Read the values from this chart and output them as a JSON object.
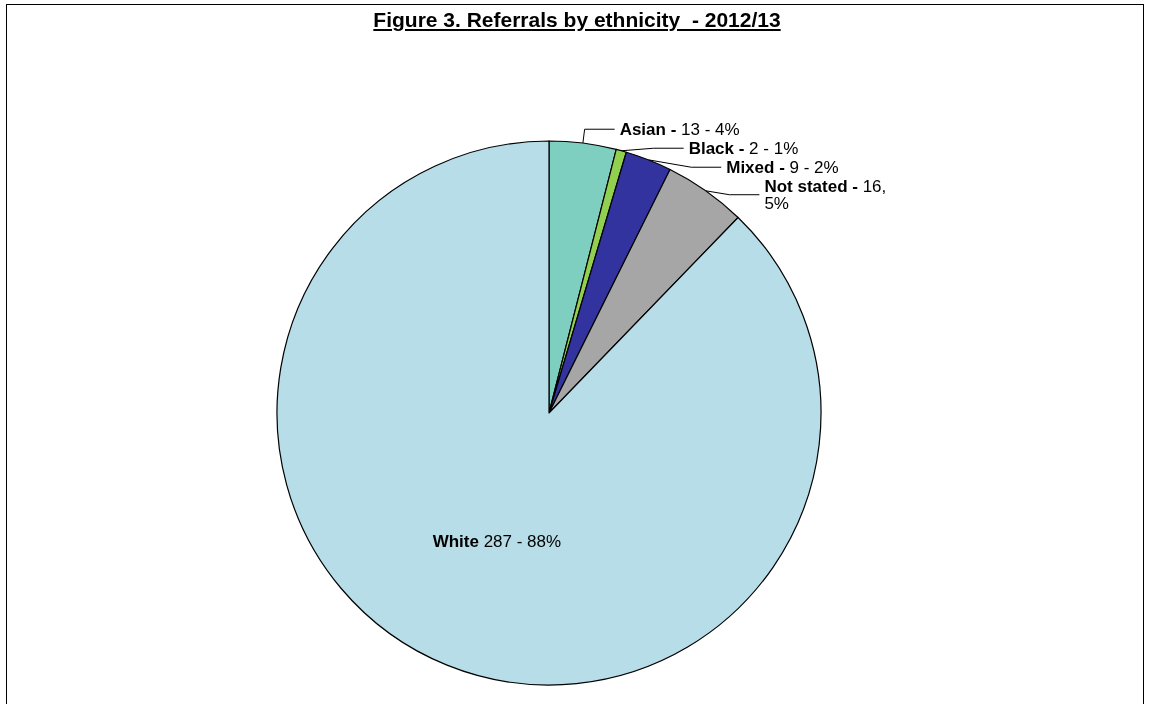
{
  "chart_data": {
    "type": "pie",
    "title": "Figure 3. Referrals by ethnicity  - 2012/13",
    "categories": [
      "Asian -",
      "Black -",
      "Mixed -",
      "Not stated -",
      "White"
    ],
    "values": [
      13,
      2,
      9,
      16,
      287
    ],
    "colors": [
      "#7fcfc1",
      "#92d050",
      "#3333a0",
      "#a6a6a6",
      "#b7dde8"
    ],
    "value_labels": [
      "13 - 4%",
      "2 - 1%",
      "9 - 2%",
      "16,\n5%",
      "287 - 88%"
    ],
    "legend": false
  }
}
